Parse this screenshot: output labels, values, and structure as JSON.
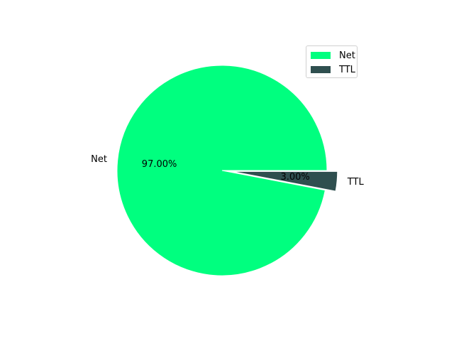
{
  "chart_data": {
    "type": "pie",
    "slices": [
      {
        "label": "Net",
        "value": 97.0,
        "pct_label": "97.00%",
        "color": "#00ff7f",
        "explode": 0
      },
      {
        "label": "TTL",
        "value": 3.0,
        "pct_label": "3.00%",
        "color": "#2f4f4f",
        "explode": 0.1
      }
    ],
    "start_angle_deg": 0,
    "legend": {
      "placement": "top-right",
      "entries": [
        "Net",
        "TTL"
      ]
    }
  }
}
